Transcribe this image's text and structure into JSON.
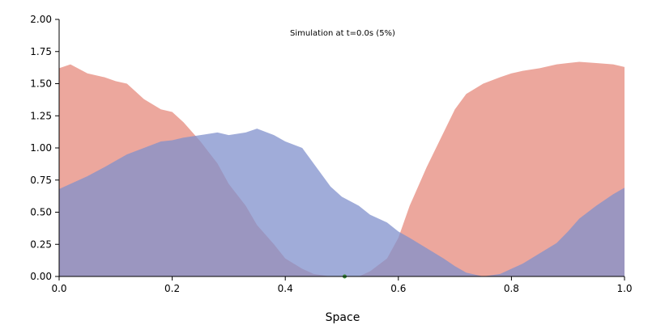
{
  "chart_data": {
    "type": "area",
    "title": "Simulation at t=0.0s (5%)",
    "xlabel": "Space",
    "ylabel": "",
    "xlim": [
      0.0,
      1.0
    ],
    "ylim": [
      0.0,
      2.0
    ],
    "grid": false,
    "xticks": [
      "0.0",
      "0.2",
      "0.4",
      "0.6",
      "0.8",
      "1.0"
    ],
    "yticks": [
      "0.00",
      "0.25",
      "0.50",
      "0.75",
      "1.00",
      "1.25",
      "1.50",
      "1.75",
      "2.00"
    ],
    "series": [
      {
        "color": "#e58a7c",
        "x": [
          0.0,
          0.02,
          0.05,
          0.08,
          0.1,
          0.12,
          0.15,
          0.18,
          0.2,
          0.22,
          0.25,
          0.28,
          0.3,
          0.33,
          0.35,
          0.38,
          0.4,
          0.43,
          0.45,
          0.48,
          0.5,
          0.53,
          0.55,
          0.58,
          0.6,
          0.62,
          0.65,
          0.68,
          0.7,
          0.72,
          0.75,
          0.78,
          0.8,
          0.82,
          0.85,
          0.88,
          0.9,
          0.92,
          0.95,
          0.98,
          1.0
        ],
        "y": [
          1.62,
          1.65,
          1.58,
          1.55,
          1.52,
          1.5,
          1.38,
          1.3,
          1.28,
          1.2,
          1.05,
          0.88,
          0.72,
          0.55,
          0.4,
          0.25,
          0.14,
          0.06,
          0.02,
          0.0,
          0.0,
          0.0,
          0.04,
          0.14,
          0.3,
          0.55,
          0.85,
          1.12,
          1.3,
          1.42,
          1.5,
          1.55,
          1.58,
          1.6,
          1.62,
          1.65,
          1.66,
          1.67,
          1.66,
          1.65,
          1.63
        ]
      },
      {
        "color": "#8090cc",
        "x": [
          0.0,
          0.02,
          0.05,
          0.08,
          0.1,
          0.12,
          0.15,
          0.18,
          0.2,
          0.22,
          0.25,
          0.28,
          0.3,
          0.33,
          0.35,
          0.38,
          0.4,
          0.43,
          0.45,
          0.48,
          0.5,
          0.53,
          0.55,
          0.58,
          0.6,
          0.62,
          0.65,
          0.68,
          0.7,
          0.72,
          0.75,
          0.78,
          0.8,
          0.82,
          0.85,
          0.88,
          0.9,
          0.92,
          0.95,
          0.98,
          1.0
        ],
        "y": [
          0.68,
          0.72,
          0.78,
          0.85,
          0.9,
          0.95,
          1.0,
          1.05,
          1.06,
          1.08,
          1.1,
          1.12,
          1.1,
          1.12,
          1.15,
          1.1,
          1.05,
          1.0,
          0.88,
          0.7,
          0.62,
          0.55,
          0.48,
          0.42,
          0.35,
          0.3,
          0.22,
          0.14,
          0.08,
          0.03,
          0.0,
          0.02,
          0.06,
          0.1,
          0.18,
          0.26,
          0.35,
          0.45,
          0.55,
          0.64,
          0.69
        ]
      }
    ],
    "marker": {
      "x": 0.505,
      "y": 0.0,
      "color": "#3a8a3a"
    }
  }
}
